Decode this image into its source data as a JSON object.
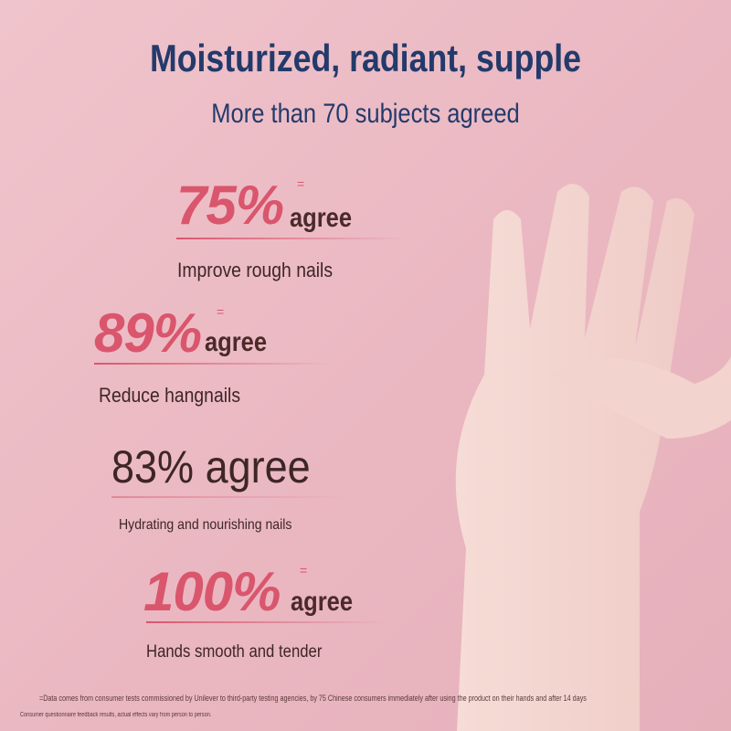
{
  "title": "Moisturized, radiant, supple",
  "subtitle": "More than 70 subjects agreed",
  "stats": [
    {
      "percent": "75%",
      "agree": "agree",
      "mark": "=",
      "label": "Improve rough nails"
    },
    {
      "percent": "89%",
      "agree": "agree",
      "mark": "=",
      "label": "Reduce hangnails"
    },
    {
      "percent": "83% agree",
      "label": "Hydrating and nourishing nails"
    },
    {
      "percent": "100%",
      "agree": "agree",
      "mark": "=",
      "label": "Hands smooth and tender"
    }
  ],
  "footnotes": [
    "=Data comes from consumer tests commissioned by Unilever to third-party testing agencies, by 75 Chinese consumers immediately after using the product on their hands and after 14 days",
    "Consumer questionnaire feedback results, actual effects vary from person to person."
  ],
  "colors": {
    "accent": "#d9566d",
    "title": "#233a6b",
    "background": "#ebb9c3"
  }
}
